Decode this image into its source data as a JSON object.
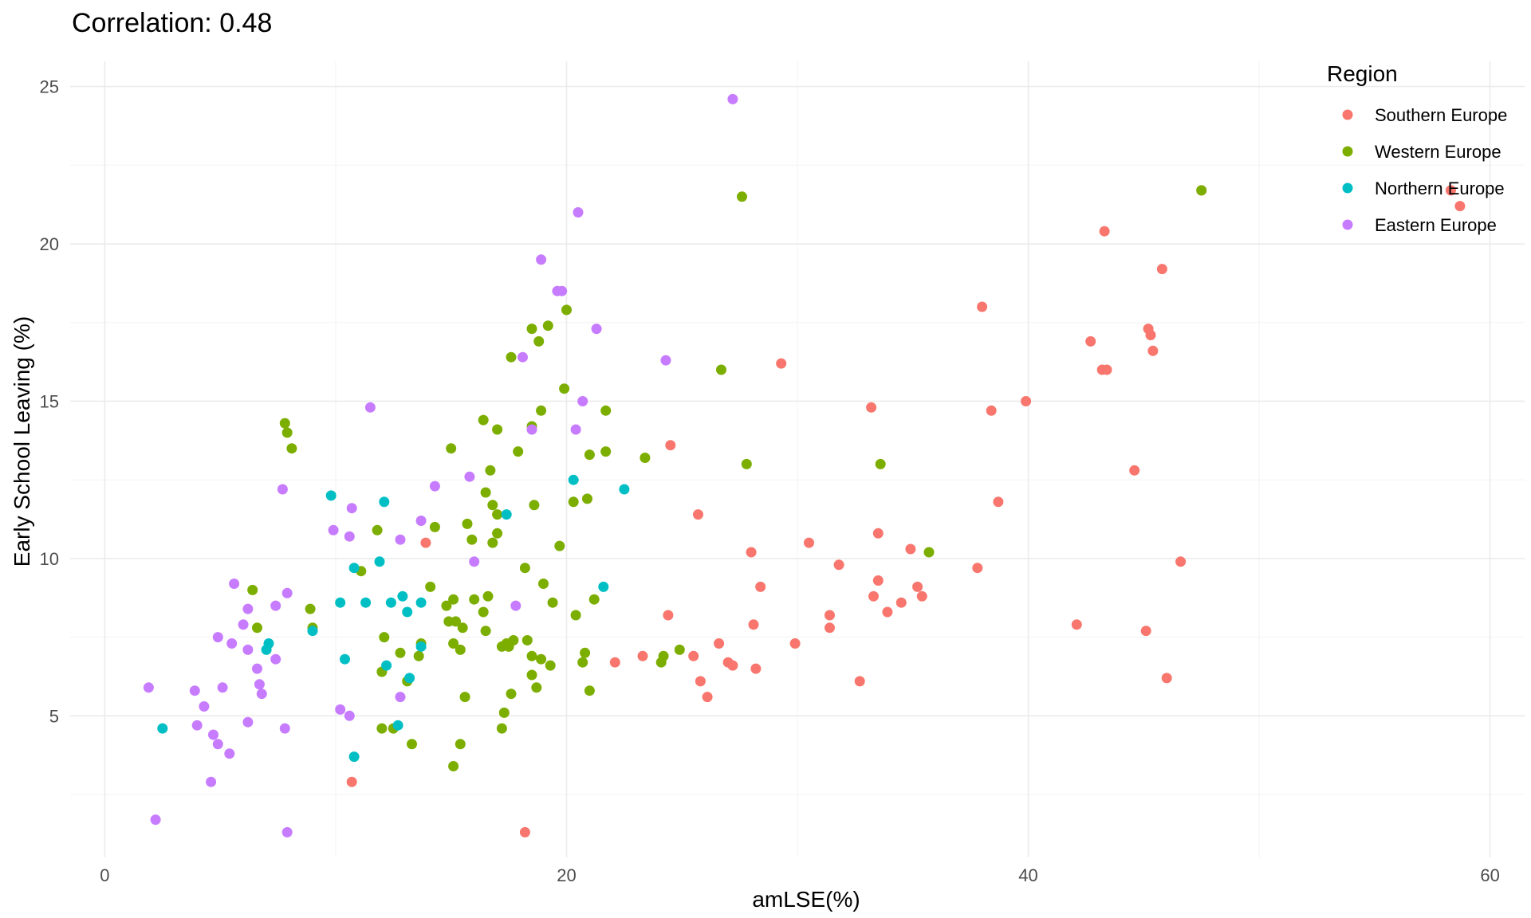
{
  "chart_data": {
    "type": "scatter",
    "title": "Correlation:  0.48",
    "xlabel": "amLSE(%)",
    "ylabel": "Early School Leaving (%)",
    "xlim": [
      -1.5,
      61.5
    ],
    "ylim": [
      0.5,
      25.8
    ],
    "x_ticks": [
      0,
      20,
      40,
      60
    ],
    "y_ticks": [
      5,
      10,
      15,
      20,
      25
    ],
    "grid": true,
    "legend": {
      "title": "Region",
      "position": "top-right",
      "entries": [
        "Southern Europe",
        "Western Europe",
        "Northern Europe",
        "Eastern Europe"
      ]
    },
    "colors": {
      "Southern Europe": "#F8766D",
      "Western Europe": "#7CAE00",
      "Northern Europe": "#00BFC4",
      "Eastern Europe": "#C77CFF"
    },
    "series": [
      {
        "name": "Southern Europe",
        "points": [
          [
            58.3,
            21.7
          ],
          [
            58.7,
            21.2
          ],
          [
            47.5,
            21.7
          ],
          [
            43.3,
            20.4
          ],
          [
            45.8,
            19.2
          ],
          [
            38.0,
            18.0
          ],
          [
            42.7,
            16.9
          ],
          [
            45.2,
            17.3
          ],
          [
            45.3,
            17.1
          ],
          [
            43.2,
            16.0
          ],
          [
            43.4,
            16.0
          ],
          [
            45.4,
            16.6
          ],
          [
            29.3,
            16.2
          ],
          [
            38.4,
            14.7
          ],
          [
            39.9,
            15.0
          ],
          [
            33.2,
            14.8
          ],
          [
            44.6,
            12.8
          ],
          [
            38.7,
            11.8
          ],
          [
            24.5,
            13.6
          ],
          [
            25.7,
            11.4
          ],
          [
            13.9,
            10.5
          ],
          [
            30.5,
            10.5
          ],
          [
            33.5,
            10.8
          ],
          [
            34.9,
            10.3
          ],
          [
            28.0,
            10.2
          ],
          [
            46.6,
            9.9
          ],
          [
            31.8,
            9.8
          ],
          [
            37.8,
            9.7
          ],
          [
            33.5,
            9.3
          ],
          [
            35.2,
            9.1
          ],
          [
            28.4,
            9.1
          ],
          [
            33.3,
            8.8
          ],
          [
            35.4,
            8.8
          ],
          [
            34.5,
            8.6
          ],
          [
            33.9,
            8.3
          ],
          [
            24.4,
            8.2
          ],
          [
            31.4,
            8.2
          ],
          [
            42.1,
            7.9
          ],
          [
            28.1,
            7.9
          ],
          [
            31.4,
            7.8
          ],
          [
            45.1,
            7.7
          ],
          [
            29.9,
            7.3
          ],
          [
            26.6,
            7.3
          ],
          [
            22.1,
            6.7
          ],
          [
            23.3,
            6.9
          ],
          [
            25.5,
            6.9
          ],
          [
            27.0,
            6.7
          ],
          [
            27.2,
            6.6
          ],
          [
            28.2,
            6.5
          ],
          [
            32.7,
            6.1
          ],
          [
            46.0,
            6.2
          ],
          [
            25.8,
            6.1
          ],
          [
            26.1,
            5.6
          ],
          [
            10.7,
            2.9
          ],
          [
            18.2,
            1.3
          ]
        ]
      },
      {
        "name": "Western Europe",
        "points": [
          [
            47.5,
            21.7
          ],
          [
            27.6,
            21.5
          ],
          [
            17.6,
            16.4
          ],
          [
            18.5,
            17.3
          ],
          [
            19.2,
            17.4
          ],
          [
            20.0,
            17.9
          ],
          [
            18.8,
            16.9
          ],
          [
            26.7,
            16.0
          ],
          [
            19.9,
            15.4
          ],
          [
            18.9,
            14.7
          ],
          [
            21.7,
            14.7
          ],
          [
            16.4,
            14.4
          ],
          [
            17.0,
            14.1
          ],
          [
            18.5,
            14.2
          ],
          [
            7.8,
            14.3
          ],
          [
            7.9,
            14.0
          ],
          [
            8.1,
            13.5
          ],
          [
            15.0,
            13.5
          ],
          [
            17.9,
            13.4
          ],
          [
            21.7,
            13.4
          ],
          [
            21.0,
            13.3
          ],
          [
            23.4,
            13.2
          ],
          [
            27.8,
            13.0
          ],
          [
            33.6,
            13.0
          ],
          [
            16.7,
            12.8
          ],
          [
            16.5,
            12.1
          ],
          [
            16.8,
            11.7
          ],
          [
            20.3,
            11.8
          ],
          [
            20.9,
            11.9
          ],
          [
            18.6,
            11.7
          ],
          [
            17.0,
            11.4
          ],
          [
            15.7,
            11.1
          ],
          [
            14.3,
            11.0
          ],
          [
            11.8,
            10.9
          ],
          [
            15.9,
            10.6
          ],
          [
            16.8,
            10.5
          ],
          [
            17.0,
            10.8
          ],
          [
            19.7,
            10.4
          ],
          [
            35.7,
            10.2
          ],
          [
            11.1,
            9.6
          ],
          [
            18.2,
            9.7
          ],
          [
            14.1,
            9.1
          ],
          [
            19.0,
            9.2
          ],
          [
            6.4,
            9.0
          ],
          [
            21.2,
            8.7
          ],
          [
            15.1,
            8.7
          ],
          [
            16.0,
            8.7
          ],
          [
            16.6,
            8.8
          ],
          [
            14.8,
            8.5
          ],
          [
            19.4,
            8.6
          ],
          [
            8.9,
            8.4
          ],
          [
            16.4,
            8.3
          ],
          [
            20.4,
            8.2
          ],
          [
            14.9,
            8.0
          ],
          [
            15.2,
            8.0
          ],
          [
            6.6,
            7.8
          ],
          [
            9.0,
            7.8
          ],
          [
            15.5,
            7.8
          ],
          [
            16.5,
            7.7
          ],
          [
            12.1,
            7.5
          ],
          [
            13.7,
            7.3
          ],
          [
            17.4,
            7.3
          ],
          [
            17.7,
            7.4
          ],
          [
            18.3,
            7.4
          ],
          [
            24.9,
            7.1
          ],
          [
            15.1,
            7.3
          ],
          [
            15.4,
            7.1
          ],
          [
            17.2,
            7.2
          ],
          [
            17.5,
            7.2
          ],
          [
            20.8,
            7.0
          ],
          [
            12.8,
            7.0
          ],
          [
            13.6,
            6.9
          ],
          [
            24.2,
            6.9
          ],
          [
            18.5,
            6.9
          ],
          [
            18.9,
            6.8
          ],
          [
            20.7,
            6.7
          ],
          [
            19.3,
            6.6
          ],
          [
            24.1,
            6.7
          ],
          [
            12.0,
            6.4
          ],
          [
            13.1,
            6.1
          ],
          [
            18.5,
            6.3
          ],
          [
            18.7,
            5.9
          ],
          [
            21.0,
            5.8
          ],
          [
            17.6,
            5.7
          ],
          [
            15.6,
            5.6
          ],
          [
            17.3,
            5.1
          ],
          [
            12.0,
            4.6
          ],
          [
            12.5,
            4.6
          ],
          [
            17.2,
            4.6
          ],
          [
            13.3,
            4.1
          ],
          [
            15.4,
            4.1
          ],
          [
            15.1,
            3.4
          ]
        ]
      },
      {
        "name": "Northern Europe",
        "points": [
          [
            9.8,
            12.0
          ],
          [
            12.1,
            11.8
          ],
          [
            22.5,
            12.2
          ],
          [
            20.3,
            12.5
          ],
          [
            17.4,
            11.4
          ],
          [
            10.8,
            9.7
          ],
          [
            11.9,
            9.9
          ],
          [
            21.6,
            9.1
          ],
          [
            12.9,
            8.8
          ],
          [
            13.7,
            8.6
          ],
          [
            10.2,
            8.6
          ],
          [
            11.3,
            8.6
          ],
          [
            12.4,
            8.6
          ],
          [
            13.1,
            8.3
          ],
          [
            9.0,
            7.7
          ],
          [
            7.1,
            7.3
          ],
          [
            7.0,
            7.1
          ],
          [
            13.7,
            7.2
          ],
          [
            10.4,
            6.8
          ],
          [
            12.2,
            6.6
          ],
          [
            13.2,
            6.2
          ],
          [
            12.7,
            4.7
          ],
          [
            2.5,
            4.6
          ],
          [
            10.8,
            3.7
          ]
        ]
      },
      {
        "name": "Eastern Europe",
        "points": [
          [
            27.2,
            24.6
          ],
          [
            20.5,
            21.0
          ],
          [
            18.9,
            19.5
          ],
          [
            19.8,
            18.5
          ],
          [
            19.6,
            18.5
          ],
          [
            21.3,
            17.3
          ],
          [
            18.1,
            16.4
          ],
          [
            24.3,
            16.3
          ],
          [
            20.7,
            15.0
          ],
          [
            11.5,
            14.8
          ],
          [
            20.4,
            14.1
          ],
          [
            18.5,
            14.1
          ],
          [
            15.8,
            12.6
          ],
          [
            7.7,
            12.2
          ],
          [
            14.3,
            12.3
          ],
          [
            13.7,
            11.2
          ],
          [
            10.7,
            11.6
          ],
          [
            9.9,
            10.9
          ],
          [
            10.6,
            10.7
          ],
          [
            12.8,
            10.6
          ],
          [
            16.0,
            9.9
          ],
          [
            5.6,
            9.2
          ],
          [
            7.9,
            8.9
          ],
          [
            7.4,
            8.5
          ],
          [
            17.8,
            8.5
          ],
          [
            6.2,
            8.4
          ],
          [
            6.0,
            7.9
          ],
          [
            4.9,
            7.5
          ],
          [
            5.5,
            7.3
          ],
          [
            6.2,
            7.1
          ],
          [
            7.4,
            6.8
          ],
          [
            6.6,
            6.5
          ],
          [
            6.7,
            6.0
          ],
          [
            6.8,
            5.7
          ],
          [
            3.9,
            5.8
          ],
          [
            1.9,
            5.9
          ],
          [
            5.1,
            5.9
          ],
          [
            12.8,
            5.6
          ],
          [
            4.3,
            5.3
          ],
          [
            10.2,
            5.2
          ],
          [
            10.6,
            5.0
          ],
          [
            6.2,
            4.8
          ],
          [
            4.0,
            4.7
          ],
          [
            7.8,
            4.6
          ],
          [
            4.7,
            4.4
          ],
          [
            4.9,
            4.1
          ],
          [
            5.4,
            3.8
          ],
          [
            4.6,
            2.9
          ],
          [
            2.2,
            1.7
          ],
          [
            7.9,
            1.3
          ]
        ]
      }
    ]
  }
}
